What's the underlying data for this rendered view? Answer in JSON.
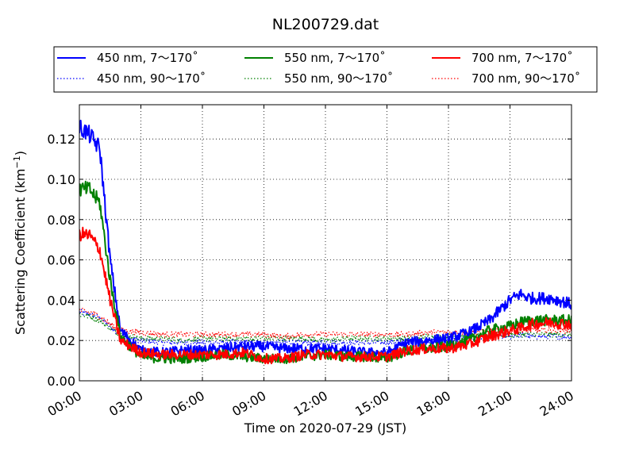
{
  "chart_data": {
    "type": "line",
    "title": "NL200729.dat",
    "xlabel": "Time on 2020-07-29 (JST)",
    "ylabel": "Scattering Coefficient (km",
    "ylabel_sup": "−1",
    "ylabel_end": ")",
    "x_ticks": [
      "00:00",
      "03:00",
      "06:00",
      "09:00",
      "12:00",
      "15:00",
      "18:00",
      "21:00",
      "24:00"
    ],
    "y_ticks": [
      "0.00",
      "0.02",
      "0.04",
      "0.06",
      "0.08",
      "0.10",
      "0.12"
    ],
    "xlim": [
      "00:00",
      "24:00"
    ],
    "ylim": [
      0.0,
      0.137
    ],
    "grid": true,
    "legend_position": "top, above plot, 3 columns",
    "legend_entries": [
      {
        "label": "450 nm, 7～170˚",
        "color": "#0000ff",
        "style": "solid"
      },
      {
        "label": "550 nm, 7～170˚",
        "color": "#008000",
        "style": "solid"
      },
      {
        "label": "700 nm, 7～170˚",
        "color": "#ff0000",
        "style": "solid"
      },
      {
        "label": "450 nm, 90～170˚",
        "color": "#0000ff",
        "style": "dotted"
      },
      {
        "label": "550 nm, 90～170˚",
        "color": "#008000",
        "style": "dotted"
      },
      {
        "label": "700 nm, 90～170˚",
        "color": "#ff0000",
        "style": "dotted"
      }
    ],
    "x": [
      "00:00",
      "00:30",
      "01:00",
      "01:30",
      "02:00",
      "03:00",
      "04:00",
      "05:00",
      "06:00",
      "07:00",
      "08:00",
      "09:00",
      "10:00",
      "11:00",
      "12:00",
      "13:00",
      "14:00",
      "15:00",
      "16:00",
      "17:00",
      "18:00",
      "19:00",
      "20:00",
      "21:00",
      "21:30",
      "22:00",
      "23:00",
      "24:00"
    ],
    "series": [
      {
        "name": "450 nm, 7～170˚",
        "color": "#0000ff",
        "style": "solid",
        "values": [
          0.126,
          0.122,
          0.115,
          0.06,
          0.025,
          0.015,
          0.014,
          0.015,
          0.015,
          0.016,
          0.017,
          0.017,
          0.016,
          0.016,
          0.016,
          0.015,
          0.014,
          0.014,
          0.019,
          0.02,
          0.021,
          0.024,
          0.03,
          0.04,
          0.043,
          0.041,
          0.041,
          0.038
        ]
      },
      {
        "name": "550 nm, 7～170˚",
        "color": "#008000",
        "style": "solid",
        "values": [
          0.095,
          0.095,
          0.088,
          0.05,
          0.022,
          0.012,
          0.011,
          0.011,
          0.012,
          0.013,
          0.012,
          0.011,
          0.011,
          0.012,
          0.013,
          0.012,
          0.012,
          0.011,
          0.015,
          0.016,
          0.017,
          0.02,
          0.025,
          0.027,
          0.029,
          0.03,
          0.03,
          0.03
        ]
      },
      {
        "name": "700 nm, 7～170˚",
        "color": "#ff0000",
        "style": "solid",
        "values": [
          0.073,
          0.072,
          0.065,
          0.04,
          0.02,
          0.014,
          0.013,
          0.013,
          0.013,
          0.013,
          0.014,
          0.011,
          0.011,
          0.013,
          0.013,
          0.012,
          0.012,
          0.012,
          0.015,
          0.016,
          0.016,
          0.018,
          0.022,
          0.025,
          0.026,
          0.028,
          0.029,
          0.028
        ]
      },
      {
        "name": "450 nm, 90～170˚",
        "color": "#0000ff",
        "style": "dotted",
        "values": [
          0.034,
          0.033,
          0.031,
          0.027,
          0.022,
          0.02,
          0.019,
          0.019,
          0.019,
          0.019,
          0.019,
          0.019,
          0.019,
          0.019,
          0.019,
          0.019,
          0.019,
          0.019,
          0.02,
          0.02,
          0.02,
          0.021,
          0.022,
          0.022,
          0.023,
          0.022,
          0.022,
          0.022
        ]
      },
      {
        "name": "550 nm, 90～170˚",
        "color": "#008000",
        "style": "dotted",
        "values": [
          0.033,
          0.032,
          0.03,
          0.026,
          0.023,
          0.021,
          0.021,
          0.02,
          0.021,
          0.021,
          0.021,
          0.021,
          0.021,
          0.021,
          0.02,
          0.021,
          0.021,
          0.021,
          0.021,
          0.022,
          0.022,
          0.022,
          0.023,
          0.023,
          0.023,
          0.023,
          0.023,
          0.023
        ]
      },
      {
        "name": "700 nm, 90～170˚",
        "color": "#ff0000",
        "style": "dotted",
        "values": [
          0.035,
          0.034,
          0.032,
          0.028,
          0.025,
          0.024,
          0.023,
          0.023,
          0.023,
          0.023,
          0.023,
          0.023,
          0.022,
          0.023,
          0.023,
          0.023,
          0.023,
          0.023,
          0.023,
          0.024,
          0.024,
          0.024,
          0.025,
          0.025,
          0.025,
          0.025,
          0.025,
          0.025
        ]
      }
    ]
  }
}
